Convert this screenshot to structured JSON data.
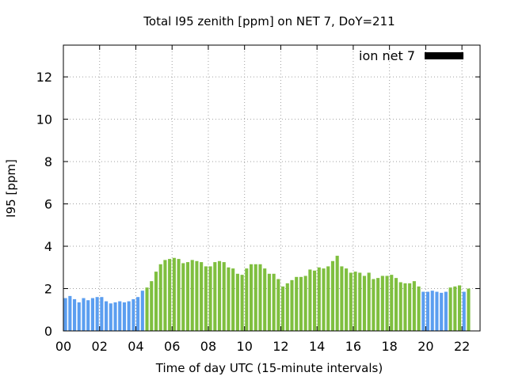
{
  "chart_data": {
    "type": "bar",
    "title": "Total I95 zenith [ppm] on NET 7, DoY=211",
    "xlabel": "Time of day UTC (15-minute intervals)",
    "ylabel": "I95 [ppm]",
    "xlim": [
      0,
      23
    ],
    "ylim": [
      0,
      13.5
    ],
    "x_ticks": [
      0,
      2,
      4,
      6,
      8,
      10,
      12,
      14,
      16,
      18,
      20,
      22
    ],
    "x_tick_labels": [
      "00",
      "02",
      "04",
      "06",
      "08",
      "10",
      "12",
      "14",
      "16",
      "18",
      "20",
      "22"
    ],
    "y_ticks": [
      0,
      2,
      4,
      6,
      8,
      10,
      12
    ],
    "y_tick_labels": [
      "0",
      "2",
      "4",
      "6",
      "8",
      "10",
      "12"
    ],
    "grid": true,
    "legend": {
      "label": "ion net 7",
      "placement": "top-right",
      "color": "#000000"
    },
    "colors": {
      "low": "#5b9ef0",
      "high": "#7fbf3f"
    },
    "interval_hours": 0.25,
    "values": [
      1.55,
      1.65,
      1.5,
      1.35,
      1.55,
      1.45,
      1.55,
      1.6,
      1.6,
      1.4,
      1.3,
      1.35,
      1.4,
      1.35,
      1.4,
      1.5,
      1.6,
      1.9,
      2.05,
      2.35,
      2.8,
      3.15,
      3.35,
      3.4,
      3.45,
      3.4,
      3.2,
      3.25,
      3.35,
      3.3,
      3.25,
      3.05,
      3.05,
      3.25,
      3.3,
      3.25,
      3.0,
      2.95,
      2.7,
      2.65,
      2.95,
      3.15,
      3.15,
      3.15,
      2.95,
      2.7,
      2.7,
      2.45,
      2.1,
      2.25,
      2.4,
      2.55,
      2.55,
      2.6,
      2.9,
      2.85,
      3.0,
      2.95,
      3.05,
      3.3,
      3.55,
      3.05,
      2.95,
      2.75,
      2.8,
      2.75,
      2.6,
      2.75,
      2.45,
      2.5,
      2.6,
      2.6,
      2.65,
      2.5,
      2.3,
      2.25,
      2.25,
      2.35,
      2.1,
      1.85,
      1.85,
      1.9,
      1.85,
      1.8,
      1.85,
      2.05,
      2.1,
      2.15,
      1.85,
      2.0
    ],
    "colors_by_bar": [
      "low",
      "low",
      "low",
      "low",
      "low",
      "low",
      "low",
      "low",
      "low",
      "low",
      "low",
      "low",
      "low",
      "low",
      "low",
      "low",
      "low",
      "low",
      "high",
      "high",
      "high",
      "high",
      "high",
      "high",
      "high",
      "high",
      "high",
      "high",
      "high",
      "high",
      "high",
      "high",
      "high",
      "high",
      "high",
      "high",
      "high",
      "high",
      "high",
      "high",
      "high",
      "high",
      "high",
      "high",
      "high",
      "high",
      "high",
      "high",
      "high",
      "high",
      "high",
      "high",
      "high",
      "high",
      "high",
      "high",
      "high",
      "high",
      "high",
      "high",
      "high",
      "high",
      "high",
      "high",
      "high",
      "high",
      "high",
      "high",
      "high",
      "high",
      "high",
      "high",
      "high",
      "high",
      "high",
      "high",
      "high",
      "high",
      "high",
      "low",
      "low",
      "low",
      "low",
      "low",
      "low",
      "high",
      "high",
      "high",
      "low",
      "high"
    ]
  }
}
